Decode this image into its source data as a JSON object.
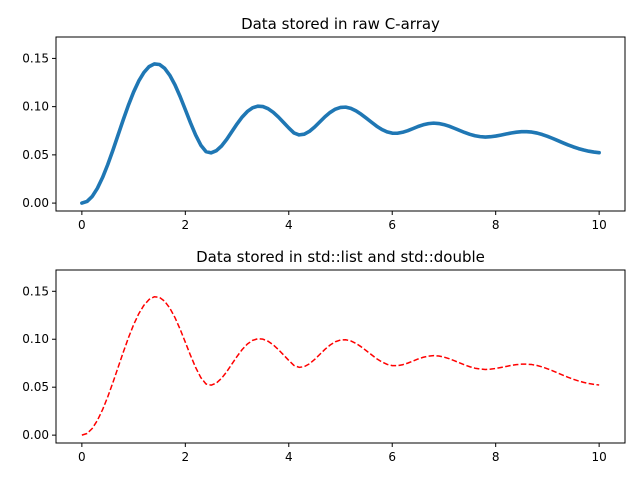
{
  "chart_data": [
    {
      "type": "line",
      "title": "Data stored in raw C-array",
      "xlabel": "",
      "ylabel": "",
      "xlim": [
        -0.5,
        10.5
      ],
      "ylim": [
        -0.0082,
        0.1722
      ],
      "xticks": [
        0,
        2,
        4,
        6,
        8,
        10
      ],
      "xtick_labels": [
        "0",
        "2",
        "4",
        "6",
        "8",
        "10"
      ],
      "yticks": [
        0.0,
        0.05,
        0.1,
        0.15
      ],
      "ytick_labels": [
        "0.00",
        "0.05",
        "0.10",
        "0.15"
      ],
      "grid": false,
      "series": [
        {
          "color": "#1f77b4",
          "linestyle": "solid",
          "x": [
            0,
            0.1,
            0.2,
            0.3,
            0.4,
            0.5,
            0.6,
            0.7,
            0.8,
            0.9,
            1.0,
            1.1,
            1.2,
            1.3,
            1.4,
            1.5,
            1.6,
            1.7,
            1.8,
            1.9,
            2.0,
            2.1,
            2.2,
            2.3,
            2.4,
            2.5,
            2.6,
            2.7,
            2.8,
            2.9,
            3.0,
            3.1,
            3.2,
            3.3,
            3.4,
            3.5,
            3.6,
            3.7,
            3.8,
            3.9,
            4.0,
            4.1,
            4.2,
            4.3,
            4.4,
            4.5,
            4.6,
            4.7,
            4.8,
            4.9,
            5.0,
            5.1,
            5.2,
            5.3,
            5.4,
            5.5,
            5.6,
            5.7,
            5.8,
            5.9,
            6.0,
            6.1,
            6.2,
            6.3,
            6.4,
            6.5,
            6.6,
            6.7,
            6.8,
            6.9,
            7.0,
            7.1,
            7.2,
            7.3,
            7.4,
            7.5,
            7.6,
            7.7,
            7.8,
            7.9,
            8.0,
            8.1,
            8.2,
            8.3,
            8.4,
            8.5,
            8.6,
            8.7,
            8.8,
            8.9,
            9.0,
            9.1,
            9.2,
            9.3,
            9.4,
            9.5,
            9.6,
            9.7,
            9.8,
            9.9,
            10.0
          ],
          "y": [
            0.0,
            0.0017,
            0.0069,
            0.0153,
            0.0265,
            0.0399,
            0.0548,
            0.0706,
            0.0864,
            0.1015,
            0.1151,
            0.1266,
            0.1355,
            0.1415,
            0.1443,
            0.1437,
            0.1397,
            0.1325,
            0.1226,
            0.1104,
            0.0969,
            0.0832,
            0.0705,
            0.06,
            0.0533,
            0.0521,
            0.0543,
            0.0592,
            0.0661,
            0.0741,
            0.0821,
            0.0893,
            0.095,
            0.0988,
            0.1005,
            0.1001,
            0.0979,
            0.0941,
            0.0892,
            0.0836,
            0.0779,
            0.0727,
            0.0707,
            0.0714,
            0.0744,
            0.0789,
            0.0842,
            0.0895,
            0.094,
            0.0974,
            0.0992,
            0.0995,
            0.0982,
            0.0956,
            0.0921,
            0.088,
            0.0838,
            0.0797,
            0.0763,
            0.0738,
            0.0725,
            0.0724,
            0.0734,
            0.0751,
            0.0772,
            0.0794,
            0.0812,
            0.0824,
            0.0829,
            0.0825,
            0.0814,
            0.0797,
            0.0776,
            0.0754,
            0.0732,
            0.0713,
            0.0698,
            0.0689,
            0.0685,
            0.0688,
            0.0695,
            0.0705,
            0.0716,
            0.0727,
            0.0735,
            0.074,
            0.074,
            0.0736,
            0.0726,
            0.0711,
            0.0692,
            0.0671,
            0.0648,
            0.0625,
            0.0603,
            0.0583,
            0.0565,
            0.055,
            0.0538,
            0.0529,
            0.0523
          ]
        }
      ]
    },
    {
      "type": "line",
      "title": "Data stored in std::list and std::double",
      "xlabel": "",
      "ylabel": "",
      "xlim": [
        -0.5,
        10.5
      ],
      "ylim": [
        -0.0082,
        0.1722
      ],
      "xticks": [
        0,
        2,
        4,
        6,
        8,
        10
      ],
      "xtick_labels": [
        "0",
        "2",
        "4",
        "6",
        "8",
        "10"
      ],
      "yticks": [
        0.0,
        0.05,
        0.1,
        0.15
      ],
      "ytick_labels": [
        "0.00",
        "0.05",
        "0.10",
        "0.15"
      ],
      "grid": false,
      "series": [
        {
          "color": "#ff0000",
          "linestyle": "dashed",
          "x": [
            0,
            0.1,
            0.2,
            0.3,
            0.4,
            0.5,
            0.6,
            0.7,
            0.8,
            0.9,
            1.0,
            1.1,
            1.2,
            1.3,
            1.4,
            1.5,
            1.6,
            1.7,
            1.8,
            1.9,
            2.0,
            2.1,
            2.2,
            2.3,
            2.4,
            2.5,
            2.6,
            2.7,
            2.8,
            2.9,
            3.0,
            3.1,
            3.2,
            3.3,
            3.4,
            3.5,
            3.6,
            3.7,
            3.8,
            3.9,
            4.0,
            4.1,
            4.2,
            4.3,
            4.4,
            4.5,
            4.6,
            4.7,
            4.8,
            4.9,
            5.0,
            5.1,
            5.2,
            5.3,
            5.4,
            5.5,
            5.6,
            5.7,
            5.8,
            5.9,
            6.0,
            6.1,
            6.2,
            6.3,
            6.4,
            6.5,
            6.6,
            6.7,
            6.8,
            6.9,
            7.0,
            7.1,
            7.2,
            7.3,
            7.4,
            7.5,
            7.6,
            7.7,
            7.8,
            7.9,
            8.0,
            8.1,
            8.2,
            8.3,
            8.4,
            8.5,
            8.6,
            8.7,
            8.8,
            8.9,
            9.0,
            9.1,
            9.2,
            9.3,
            9.4,
            9.5,
            9.6,
            9.7,
            9.8,
            9.9,
            10.0
          ],
          "y": [
            0.0,
            0.0017,
            0.0069,
            0.0153,
            0.0265,
            0.0399,
            0.0548,
            0.0706,
            0.0864,
            0.1015,
            0.1151,
            0.1266,
            0.1355,
            0.1415,
            0.1443,
            0.1437,
            0.1397,
            0.1325,
            0.1226,
            0.1104,
            0.0969,
            0.0832,
            0.0705,
            0.06,
            0.0533,
            0.0521,
            0.0543,
            0.0592,
            0.0661,
            0.0741,
            0.0821,
            0.0893,
            0.095,
            0.0988,
            0.1005,
            0.1001,
            0.0979,
            0.0941,
            0.0892,
            0.0836,
            0.0779,
            0.0727,
            0.0707,
            0.0714,
            0.0744,
            0.0789,
            0.0842,
            0.0895,
            0.094,
            0.0974,
            0.0992,
            0.0995,
            0.0982,
            0.0956,
            0.0921,
            0.088,
            0.0838,
            0.0797,
            0.0763,
            0.0738,
            0.0725,
            0.0724,
            0.0734,
            0.0751,
            0.0772,
            0.0794,
            0.0812,
            0.0824,
            0.0829,
            0.0825,
            0.0814,
            0.0797,
            0.0776,
            0.0754,
            0.0732,
            0.0713,
            0.0698,
            0.0689,
            0.0685,
            0.0688,
            0.0695,
            0.0705,
            0.0716,
            0.0727,
            0.0735,
            0.074,
            0.074,
            0.0736,
            0.0726,
            0.0711,
            0.0692,
            0.0671,
            0.0648,
            0.0625,
            0.0603,
            0.0583,
            0.0565,
            0.055,
            0.0538,
            0.0529,
            0.0523
          ]
        }
      ]
    }
  ]
}
